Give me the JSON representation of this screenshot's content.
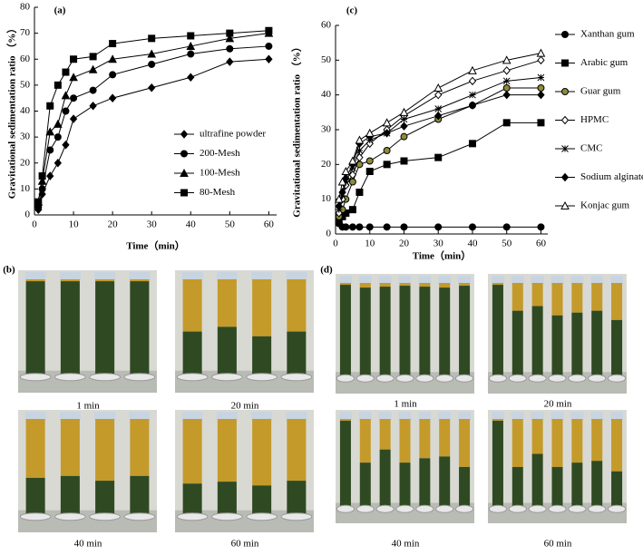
{
  "chart_data": [
    {
      "type": "line",
      "label": "(a)",
      "y_label": "Gravitational sedimentation ratio （%）",
      "x_label": "Time（min）",
      "x": [
        1,
        2,
        4,
        6,
        8,
        10,
        15,
        20,
        30,
        40,
        50,
        60
      ],
      "xlim": [
        0,
        62
      ],
      "xticks": [
        0,
        10,
        20,
        30,
        40,
        50,
        60
      ],
      "ylim": [
        0,
        80
      ],
      "yticks": [
        0,
        10,
        20,
        30,
        40,
        50,
        60,
        70,
        80
      ],
      "series": [
        {
          "name": "ultrafine powder",
          "color": "#000000",
          "marker": "diamond",
          "marker_fill": "#000000",
          "values": [
            2,
            8,
            15,
            20,
            27,
            37,
            42,
            45,
            49,
            53,
            59,
            60
          ]
        },
        {
          "name": "200-Mesh",
          "color": "#000000",
          "marker": "circle",
          "marker_fill": "#000000",
          "values": [
            3,
            10,
            25,
            30,
            40,
            45,
            48,
            54,
            58,
            62,
            64,
            65
          ]
        },
        {
          "name": "100-Mesh",
          "color": "#000000",
          "marker": "triangle",
          "marker_fill": "#000000",
          "values": [
            5,
            13,
            32,
            35,
            46,
            53,
            56,
            60,
            62,
            65,
            68,
            70
          ]
        },
        {
          "name": "80-Mesh",
          "color": "#000000",
          "marker": "square",
          "marker_fill": "#000000",
          "values": [
            5,
            15,
            42,
            50,
            55,
            60,
            61,
            66,
            68,
            69,
            70,
            71
          ]
        }
      ]
    },
    {
      "type": "line",
      "label": "(c)",
      "y_label": "Gravitational sedimentation ratio （%）",
      "x_label": "Time（min）",
      "x": [
        1,
        2,
        3,
        5,
        7,
        10,
        15,
        20,
        30,
        40,
        50,
        60
      ],
      "xlim": [
        0,
        62
      ],
      "xticks": [
        0,
        10,
        20,
        30,
        40,
        50,
        60
      ],
      "ylim": [
        0,
        60
      ],
      "yticks": [
        0,
        10,
        20,
        30,
        40,
        50,
        60
      ],
      "series": [
        {
          "name": "Xanthan gum",
          "color": "#000000",
          "marker": "circle",
          "marker_fill": "#000000",
          "values": [
            3,
            2,
            2,
            2,
            2,
            2,
            2,
            2,
            2,
            2,
            2,
            2
          ]
        },
        {
          "name": "Arabic gum",
          "color": "#000000",
          "marker": "square",
          "marker_fill": "#000000",
          "values": [
            4,
            5,
            6,
            7,
            12,
            18,
            20,
            21,
            22,
            26,
            32,
            32
          ]
        },
        {
          "name": "Guar gum",
          "color": "#000000",
          "marker": "circle",
          "marker_fill": "#8b8b3c",
          "values": [
            5,
            7,
            10,
            15,
            20,
            21,
            24,
            28,
            33,
            37,
            42,
            42
          ]
        },
        {
          "name": "HPMC",
          "color": "#000000",
          "marker": "diamond",
          "marker_fill": "#ffffff",
          "values": [
            6,
            10,
            14,
            17,
            22,
            26,
            30,
            34,
            40,
            44,
            47,
            50
          ]
        },
        {
          "name": "CMC",
          "color": "#000000",
          "marker": "star",
          "marker_fill": "#000000",
          "values": [
            7,
            11,
            15,
            19,
            24,
            27,
            29,
            33,
            36,
            40,
            44,
            45
          ]
        },
        {
          "name": "Sodium alginate",
          "color": "#000000",
          "marker": "diamond",
          "marker_fill": "#000000",
          "values": [
            8,
            12,
            16,
            20,
            26,
            28,
            29,
            31,
            34,
            37,
            40,
            40
          ]
        },
        {
          "name": "Konjac gum",
          "color": "#000000",
          "marker": "triangle",
          "marker_fill": "#ffffff",
          "values": [
            10,
            15,
            18,
            21,
            27,
            29,
            32,
            35,
            42,
            47,
            50,
            52
          ]
        }
      ]
    }
  ],
  "photos": {
    "b": {
      "label": "(b)",
      "captions": [
        "1 min",
        "20 min",
        "40 min",
        "60 min"
      ]
    },
    "d": {
      "label": "(d)",
      "captions": [
        "1 min",
        "20 min",
        "40 min",
        "60 min"
      ]
    }
  }
}
